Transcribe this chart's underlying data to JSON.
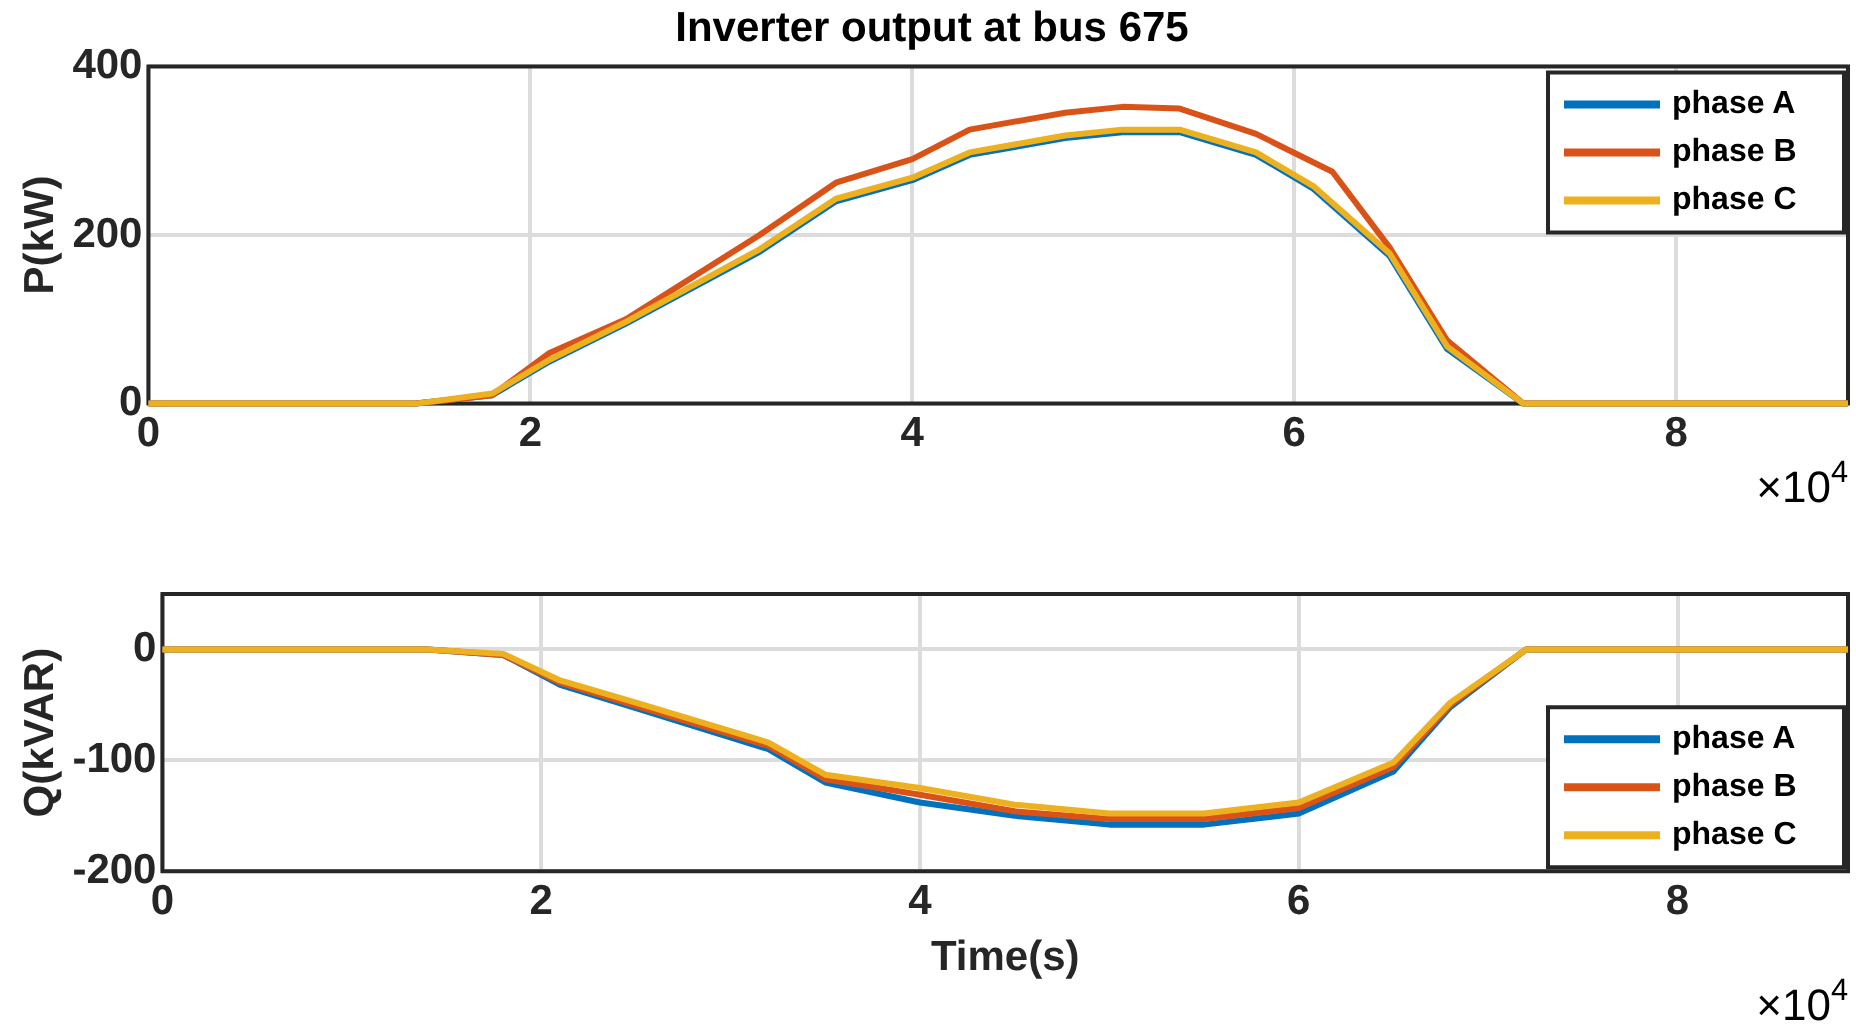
{
  "chart_data": [
    {
      "type": "line",
      "title": "Inverter output at bus 675",
      "ylabel": "P(kW)",
      "annotations": [
        "×10$^{4}$"
      ],
      "xlim": [
        0,
        8.9
      ],
      "xticks": [
        0,
        2,
        4,
        6,
        8
      ],
      "ylim": [
        0,
        400
      ],
      "yticks": [
        0,
        200,
        400
      ],
      "grid": true,
      "legend": "top right",
      "line_style": "solid",
      "marker": "none",
      "series": [
        {
          "name": "phase A",
          "color": "#0072bd",
          "x": [
            0,
            1.4,
            1.8,
            2.1,
            2.5,
            3.2,
            3.6,
            4.0,
            4.3,
            4.8,
            5.1,
            5.4,
            5.8,
            6.1,
            6.5,
            6.8,
            7.2,
            8.9
          ],
          "values": [
            0,
            0,
            10,
            50,
            95,
            180,
            240,
            265,
            295,
            315,
            322,
            322,
            295,
            255,
            175,
            65,
            0,
            0
          ]
        },
        {
          "name": "phase B",
          "color": "#d95319",
          "x": [
            0,
            1.4,
            1.8,
            2.1,
            2.5,
            3.2,
            3.6,
            4.0,
            4.3,
            4.8,
            5.1,
            5.4,
            5.8,
            6.2,
            6.5,
            6.8,
            7.2,
            8.9
          ],
          "values": [
            0,
            0,
            10,
            60,
            100,
            200,
            262,
            290,
            325,
            345,
            352,
            350,
            320,
            275,
            185,
            75,
            0,
            0
          ]
        },
        {
          "name": "phase C",
          "color": "#edb120",
          "x": [
            0,
            1.4,
            1.8,
            2.1,
            2.5,
            3.2,
            3.6,
            4.0,
            4.3,
            4.8,
            5.1,
            5.4,
            5.8,
            6.1,
            6.5,
            6.8,
            7.2,
            8.9
          ],
          "values": [
            0,
            0,
            12,
            52,
            97,
            183,
            243,
            268,
            298,
            318,
            325,
            325,
            298,
            258,
            178,
            68,
            0,
            0
          ]
        }
      ]
    },
    {
      "type": "line",
      "xlabel": "Time(s)",
      "ylabel": "Q(kVAR)",
      "annotations": [
        "×10$^{4}$"
      ],
      "xlim": [
        0,
        8.9
      ],
      "xticks": [
        0,
        2,
        4,
        6,
        8
      ],
      "ylim": [
        -200,
        50
      ],
      "yticks": [
        -200,
        -100,
        0
      ],
      "grid": true,
      "legend": "bottom right",
      "line_style": "solid",
      "marker": "none",
      "series": [
        {
          "name": "phase A",
          "color": "#0072bd",
          "x": [
            0,
            1.4,
            1.8,
            2.1,
            2.5,
            3.2,
            3.5,
            4.0,
            4.5,
            5.0,
            5.5,
            6.0,
            6.5,
            6.8,
            7.2,
            8.9
          ],
          "values": [
            0,
            0,
            -5,
            -32,
            -53,
            -90,
            -120,
            -138,
            -150,
            -158,
            -158,
            -148,
            -110,
            -52,
            0,
            0
          ]
        },
        {
          "name": "phase B",
          "color": "#d95319",
          "x": [
            0,
            1.4,
            1.8,
            2.1,
            2.5,
            3.2,
            3.5,
            4.0,
            4.5,
            5.0,
            5.5,
            6.0,
            6.5,
            6.8,
            7.2,
            8.9
          ],
          "values": [
            0,
            0,
            -5,
            -30,
            -51,
            -87,
            -117,
            -131,
            -146,
            -153,
            -153,
            -143,
            -106,
            -50,
            0,
            0
          ]
        },
        {
          "name": "phase C",
          "color": "#edb120",
          "x": [
            0,
            1.4,
            1.8,
            2.1,
            2.5,
            3.2,
            3.5,
            4.0,
            4.5,
            5.0,
            5.5,
            6.0,
            6.5,
            6.8,
            7.2,
            8.9
          ],
          "values": [
            0,
            0,
            -4,
            -28,
            -48,
            -84,
            -113,
            -125,
            -140,
            -148,
            -148,
            -138,
            -102,
            -48,
            0,
            0
          ]
        }
      ]
    }
  ]
}
